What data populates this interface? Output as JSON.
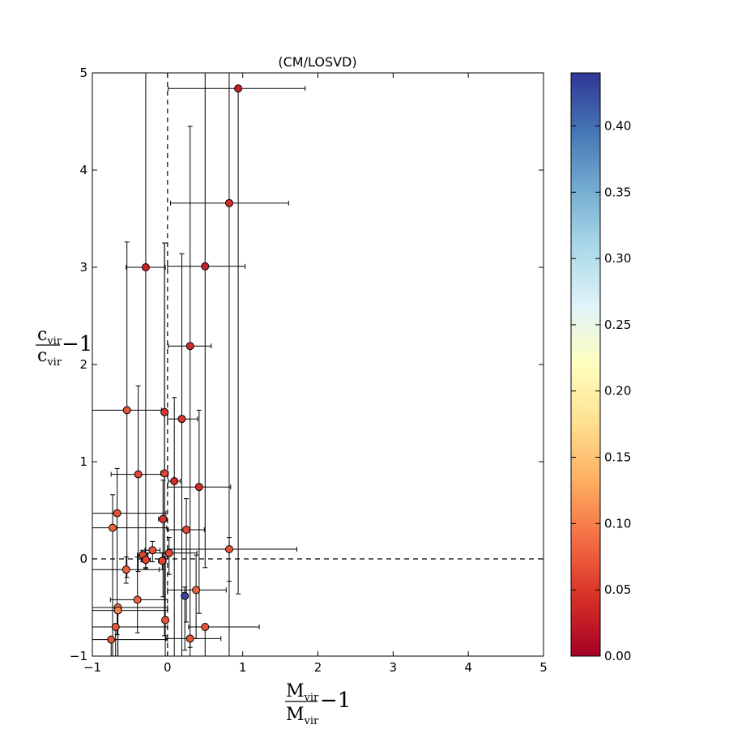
{
  "chart_data": {
    "type": "scatter",
    "title": "(CM/LOSVD)",
    "xlabel": {
      "numerator": "M",
      "numerator_sub": "vir",
      "denominator": "M",
      "denominator_sub": "vir",
      "suffix": "−1"
    },
    "ylabel": {
      "numerator": "c",
      "numerator_sub": "vir",
      "denominator": "c",
      "denominator_sub": "vir",
      "suffix": "−1"
    },
    "xlim": [
      -1,
      5
    ],
    "ylim": [
      -1,
      5
    ],
    "xticks": [
      "−1",
      "0",
      "1",
      "2",
      "3",
      "4",
      "5"
    ],
    "yticks": [
      "−1",
      "0",
      "1",
      "2",
      "3",
      "4",
      "5"
    ],
    "reference_lines": {
      "x": 0,
      "y": 0,
      "style": "dashed"
    },
    "colorbar": {
      "range": [
        0,
        0.44
      ],
      "ticks": [
        "0.00",
        "0.05",
        "0.10",
        "0.15",
        "0.20",
        "0.25",
        "0.30",
        "0.35",
        "0.40"
      ],
      "colormap": [
        "#a50026",
        "#d73027",
        "#f46d43",
        "#fdae61",
        "#fee090",
        "#ffffbf",
        "#e0f3f8",
        "#abd9e9",
        "#74add1",
        "#4575b4",
        "#313695"
      ]
    },
    "points": [
      {
        "x": 0.94,
        "y": 4.84,
        "xerr": [
          0.93,
          0.89
        ],
        "yerr": [
          5.2,
          0.0
        ],
        "c": 0.03
      },
      {
        "x": 0.82,
        "y": 3.66,
        "xerr": [
          0.78,
          0.79
        ],
        "yerr": [
          4.7,
          1.4
        ],
        "c": 0.04
      },
      {
        "x": -0.29,
        "y": 3.0,
        "xerr": [
          0.26,
          0.26
        ],
        "yerr": [
          3.1,
          2.1
        ],
        "c": 0.03
      },
      {
        "x": 0.5,
        "y": 3.01,
        "xerr": [
          0.5,
          0.53
        ],
        "yerr": [
          3.1,
          2.1
        ],
        "c": 0.03
      },
      {
        "x": 0.3,
        "y": 2.19,
        "xerr": [
          0.29,
          0.28
        ],
        "yerr": [
          3.1,
          2.26
        ],
        "c": 0.04
      },
      {
        "x": -0.54,
        "y": 1.53,
        "xerr": [
          0.46,
          0.46
        ],
        "yerr": [
          1.72,
          1.73
        ],
        "c": 0.07
      },
      {
        "x": -0.04,
        "y": 1.51,
        "xerr": [
          0.04,
          0.04
        ],
        "yerr": [
          2.3,
          1.74
        ],
        "c": 0.05
      },
      {
        "x": 0.19,
        "y": 1.44,
        "xerr": [
          0.19,
          0.21
        ],
        "yerr": [
          2.7,
          1.7
        ],
        "c": 0.05
      },
      {
        "x": -0.39,
        "y": 0.87,
        "xerr": [
          0.36,
          0.36
        ],
        "yerr": [
          1.0,
          0.91
        ],
        "c": 0.06
      },
      {
        "x": -0.04,
        "y": 0.88,
        "xerr": [
          0.05,
          0.05
        ],
        "yerr": [
          1.3,
          2.37
        ],
        "c": 0.06
      },
      {
        "x": 0.09,
        "y": 0.8,
        "xerr": [
          0.08,
          0.08
        ],
        "yerr": [
          1.8,
          0.86
        ],
        "c": 0.04
      },
      {
        "x": 0.42,
        "y": 0.74,
        "xerr": [
          0.42,
          0.42
        ],
        "yerr": [
          1.3,
          0.79
        ],
        "c": 0.04
      },
      {
        "x": -0.67,
        "y": 0.47,
        "xerr": [
          0.33,
          0.65
        ],
        "yerr": [
          1.25,
          0.46
        ],
        "c": 0.07
      },
      {
        "x": -0.06,
        "y": 0.41,
        "xerr": [
          0.06,
          0.05
        ],
        "yerr": [
          0.8,
          0.4
        ],
        "c": 0.05
      },
      {
        "x": -0.73,
        "y": 0.32,
        "xerr": [
          0.27,
          0.72
        ],
        "yerr": [
          1.5,
          0.34
        ],
        "c": 0.08
      },
      {
        "x": 0.25,
        "y": 0.3,
        "xerr": [
          0.24,
          0.24
        ],
        "yerr": [
          0.95,
          0.32
        ],
        "c": 0.06
      },
      {
        "x": 0.82,
        "y": 0.1,
        "xerr": [
          0.82,
          0.9
        ],
        "yerr": [
          0.33,
          0.12
        ],
        "c": 0.07
      },
      {
        "x": -0.2,
        "y": 0.09,
        "xerr": [
          0.1,
          0.1
        ],
        "yerr": [
          0.12,
          0.09
        ],
        "c": 0.07
      },
      {
        "x": 0.02,
        "y": 0.06,
        "xerr": [
          0.37,
          0.37
        ],
        "yerr": [
          0.22,
          0.16
        ],
        "c": 0.06
      },
      {
        "x": -0.33,
        "y": 0.04,
        "xerr": [
          0.07,
          0.07
        ],
        "yerr": [
          0.07,
          0.05
        ],
        "c": 0.06
      },
      {
        "x": -0.29,
        "y": -0.01,
        "xerr": [
          0.06,
          0.06
        ],
        "yerr": [
          0.08,
          0.06
        ],
        "c": 0.06
      },
      {
        "x": -0.07,
        "y": -0.02,
        "xerr": [
          0.05,
          0.05
        ],
        "yerr": [
          0.09,
          0.08
        ],
        "c": 0.06
      },
      {
        "x": -0.55,
        "y": -0.11,
        "xerr": [
          0.45,
          0.44
        ],
        "yerr": [
          0.14,
          0.13
        ],
        "c": 0.08
      },
      {
        "x": 0.23,
        "y": -0.38,
        "xerr": [
          0.04,
          0.04
        ],
        "yerr": [
          0.56,
          0.09
        ],
        "c": 0.43
      },
      {
        "x": 0.38,
        "y": -0.32,
        "xerr": [
          0.38,
          0.4
        ],
        "yerr": [
          0.5,
          0.36
        ],
        "c": 0.08
      },
      {
        "x": -0.4,
        "y": -0.42,
        "xerr": [
          0.36,
          0.36
        ],
        "yerr": [
          0.34,
          0.44
        ],
        "c": 0.08
      },
      {
        "x": -0.66,
        "y": -0.5,
        "xerr": [
          0.34,
          0.66
        ],
        "yerr": [
          0.5,
          0.0
        ],
        "c": 0.09
      },
      {
        "x": -0.66,
        "y": -0.53,
        "xerr": [
          0.34,
          0.66
        ],
        "yerr": [
          0.47,
          0.0
        ],
        "c": 0.1
      },
      {
        "x": -0.03,
        "y": -0.63,
        "xerr": [
          0.03,
          0.03
        ],
        "yerr": [
          0.37,
          0.65
        ],
        "c": 0.07
      },
      {
        "x": -0.69,
        "y": -0.7,
        "xerr": [
          0.31,
          0.69
        ],
        "yerr": [
          0.3,
          0.0
        ],
        "c": 0.07
      },
      {
        "x": 0.5,
        "y": -0.7,
        "xerr": [
          0.22,
          0.72
        ],
        "yerr": [
          0.3,
          0.0
        ],
        "c": 0.07
      },
      {
        "x": -0.75,
        "y": -0.83,
        "xerr": [
          0.25,
          0.75
        ],
        "yerr": [
          0.17,
          0.0
        ],
        "c": 0.07
      },
      {
        "x": 0.3,
        "y": -0.82,
        "xerr": [
          0.32,
          0.41
        ],
        "yerr": [
          0.18,
          0.0
        ],
        "c": 0.07
      }
    ]
  }
}
